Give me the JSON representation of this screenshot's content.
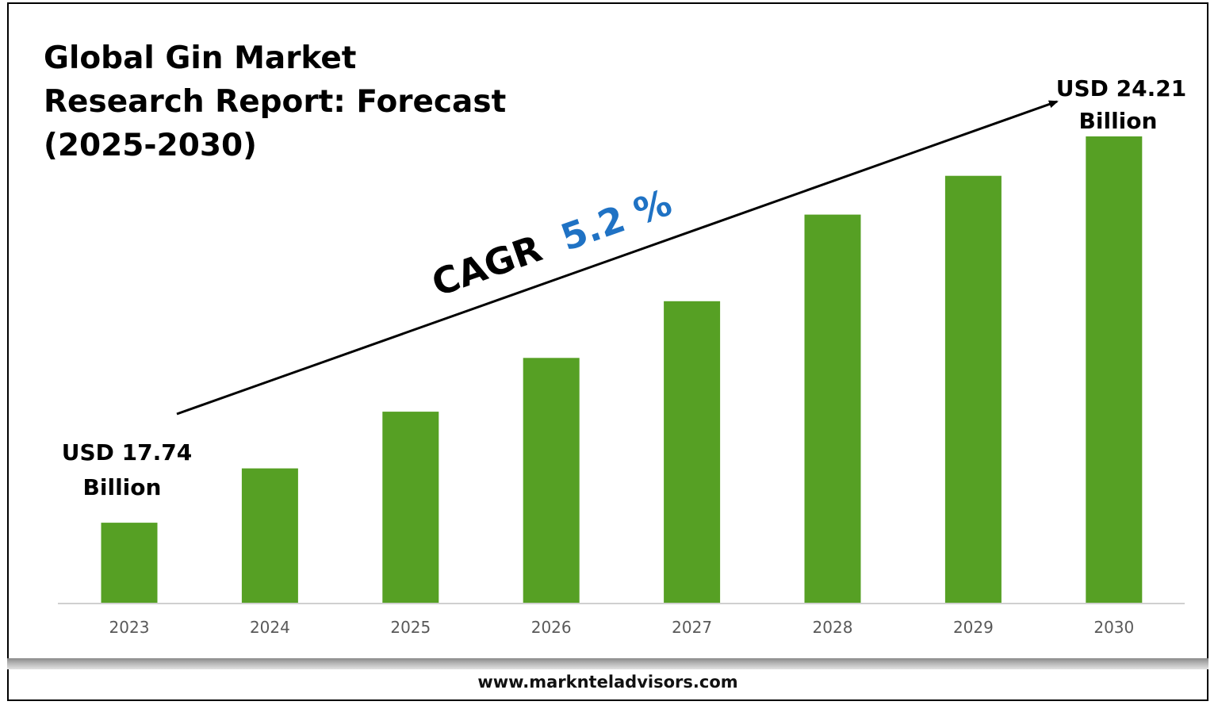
{
  "title_lines": [
    "Global Gin Market",
    "Research Report: Forecast",
    "(2025-2030)"
  ],
  "footer": {
    "url": "www.marknteladvisors.com"
  },
  "colors": {
    "bar": "#56a024",
    "axis": "#d0d0d0",
    "cagr_value": "#1f72c4",
    "text": "#000000"
  },
  "annotations": {
    "start_value": [
      "USD 17.74",
      "Billion"
    ],
    "end_value": [
      "USD 24.21",
      "Billion"
    ],
    "cagr_label": "CAGR",
    "cagr_value": "5.2 %"
  },
  "chart_data": {
    "type": "bar",
    "title": "Global Gin Market Research Report: Forecast (2025-2030)",
    "categories": [
      "2023",
      "2024",
      "2025",
      "2026",
      "2027",
      "2028",
      "2029",
      "2030"
    ],
    "values": [
      17.74,
      18.65,
      19.6,
      20.5,
      21.45,
      22.9,
      23.55,
      24.21
    ],
    "unit": "USD Billion",
    "ylim": [
      16.4,
      25.0
    ],
    "grid": false,
    "legend": "none",
    "y_axis_visible": false
  }
}
